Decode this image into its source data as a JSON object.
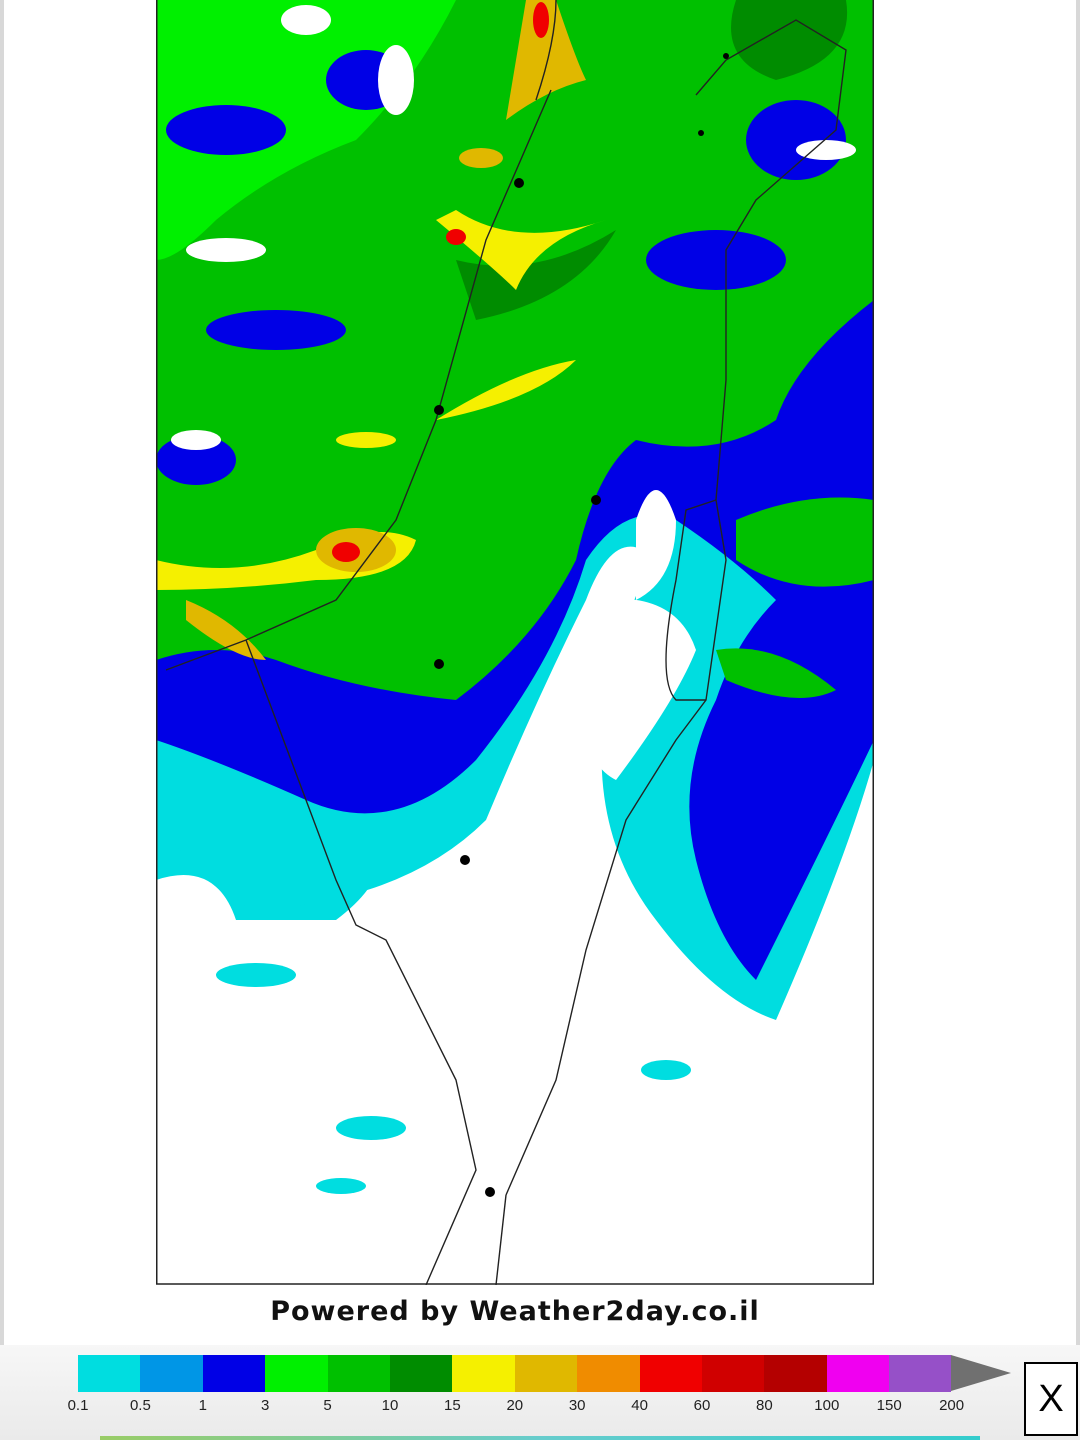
{
  "footer": {
    "powered_by": "Powered by Weather2day.co.il"
  },
  "legend": {
    "levels": [
      "0.1",
      "0.5",
      "1",
      "3",
      "5",
      "10",
      "15",
      "20",
      "30",
      "40",
      "60",
      "80",
      "100",
      "150",
      "200"
    ],
    "colors": [
      "#00dde0",
      "#0096e6",
      "#0000e6",
      "#00f000",
      "#00c000",
      "#008c00",
      "#f5f000",
      "#e0b800",
      "#f08c00",
      "#f00000",
      "#d00000",
      "#b40000",
      "#f000f0",
      "#9650c8"
    ],
    "overflow_color": "#707070"
  },
  "close_button": {
    "label": "X"
  }
}
